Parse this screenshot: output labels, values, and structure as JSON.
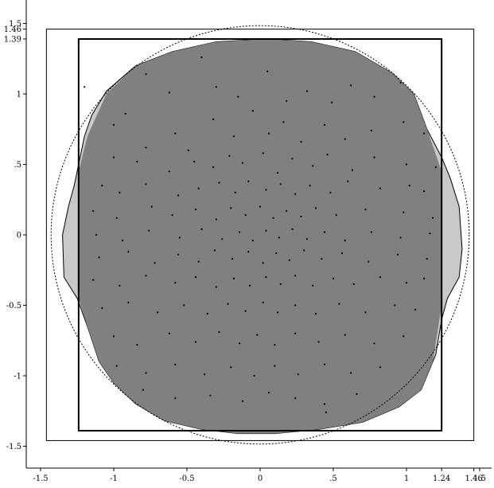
{
  "chart_data": {
    "type": "scatter",
    "title": "",
    "xlabel": "",
    "ylabel": "",
    "xlim": [
      -1.58,
      1.58
    ],
    "ylim": [
      -1.63,
      1.58
    ],
    "grid": false,
    "x_ticks": [
      {
        "value": -1.5,
        "label": "-1.5"
      },
      {
        "value": -1,
        "label": "-1"
      },
      {
        "value": -0.5,
        "label": "-0.5"
      },
      {
        "value": 0,
        "label": "0"
      },
      {
        "value": 0.5,
        "label": ".5"
      },
      {
        "value": 1,
        "label": "1"
      },
      {
        "value": 1.24,
        "label": "1.24"
      },
      {
        "value": 1.46,
        "label": "1.46"
      },
      {
        "value": 1.5,
        "label": "1.5"
      }
    ],
    "y_ticks": [
      {
        "value": 1.5,
        "label": "1.5"
      },
      {
        "value": 1.46,
        "label": "1.46"
      },
      {
        "value": 1.39,
        "label": "1.39"
      },
      {
        "value": 1,
        "label": "1"
      },
      {
        "value": 0.5,
        "label": ".5"
      },
      {
        "value": 0,
        "label": "0"
      },
      {
        "value": -0.5,
        "label": "-0.5"
      },
      {
        "value": -1,
        "label": "-1"
      },
      {
        "value": -1.5,
        "label": "-1.5"
      }
    ],
    "outer_rectangle": {
      "x": [
        -1.46,
        1.46
      ],
      "y": [
        -1.46,
        1.46
      ]
    },
    "inner_rectangle": {
      "x": [
        -1.24,
        1.24
      ],
      "y": [
        -1.39,
        1.39
      ]
    },
    "dotted_circle": {
      "center": [
        0,
        0
      ],
      "radius": 1.46
    },
    "outer_region_color": "#c8c8c8",
    "inner_region_color": "#808080",
    "outer_region_boundary": [
      [
        -1.35,
        0
      ],
      [
        -1.34,
        -0.3
      ],
      [
        -1.25,
        -0.45
      ],
      [
        -1.18,
        -0.65
      ],
      [
        -1.1,
        -0.9
      ],
      [
        -1.0,
        -1.05
      ],
      [
        -0.85,
        -1.2
      ],
      [
        -0.65,
        -1.32
      ],
      [
        -0.4,
        -1.38
      ],
      [
        -0.15,
        -1.41
      ],
      [
        0.1,
        -1.41
      ],
      [
        0.4,
        -1.38
      ],
      [
        0.7,
        -1.33
      ],
      [
        0.95,
        -1.22
      ],
      [
        1.1,
        -1.1
      ],
      [
        1.2,
        -0.85
      ],
      [
        1.24,
        -0.6
      ],
      [
        1.28,
        -0.45
      ],
      [
        1.36,
        -0.3
      ],
      [
        1.38,
        -0.1
      ],
      [
        1.36,
        0.2
      ],
      [
        1.3,
        0.4
      ],
      [
        1.24,
        0.55
      ],
      [
        1.14,
        0.75
      ],
      [
        1.05,
        1.0
      ],
      [
        0.9,
        1.15
      ],
      [
        0.65,
        1.3
      ],
      [
        0.35,
        1.37
      ],
      [
        0.05,
        1.39
      ],
      [
        -0.3,
        1.37
      ],
      [
        -0.6,
        1.3
      ],
      [
        -0.85,
        1.2
      ],
      [
        -1.05,
        1.02
      ],
      [
        -1.15,
        0.85
      ],
      [
        -1.2,
        0.7
      ],
      [
        -1.24,
        0.5
      ],
      [
        -1.27,
        0.35
      ],
      [
        -1.31,
        0.2
      ]
    ],
    "inner_region_boundary": [
      [
        -1.24,
        0.45
      ],
      [
        -1.18,
        0.7
      ],
      [
        -1.05,
        1.0
      ],
      [
        -0.85,
        1.2
      ],
      [
        -0.6,
        1.3
      ],
      [
        -0.3,
        1.37
      ],
      [
        0.05,
        1.39
      ],
      [
        0.35,
        1.37
      ],
      [
        0.65,
        1.3
      ],
      [
        0.9,
        1.15
      ],
      [
        1.05,
        1.0
      ],
      [
        1.14,
        0.75
      ],
      [
        1.24,
        0.45
      ],
      [
        1.24,
        -0.5
      ],
      [
        1.18,
        -0.9
      ],
      [
        1.1,
        -1.1
      ],
      [
        0.95,
        -1.22
      ],
      [
        0.7,
        -1.33
      ],
      [
        0.4,
        -1.38
      ],
      [
        0.1,
        -1.41
      ],
      [
        -0.15,
        -1.41
      ],
      [
        -0.4,
        -1.38
      ],
      [
        -0.65,
        -1.32
      ],
      [
        -0.85,
        -1.2
      ],
      [
        -1.0,
        -1.05
      ],
      [
        -1.1,
        -0.9
      ],
      [
        -1.18,
        -0.65
      ],
      [
        -1.24,
        -0.45
      ]
    ],
    "points": [
      [
        -1.2,
        1.05
      ],
      [
        -0.78,
        1.14
      ],
      [
        -0.62,
        1.01
      ],
      [
        -0.4,
        1.26
      ],
      [
        -0.3,
        1.05
      ],
      [
        -0.15,
        0.98
      ],
      [
        0.05,
        1.16
      ],
      [
        0.18,
        0.95
      ],
      [
        0.32,
        1.02
      ],
      [
        0.49,
        0.94
      ],
      [
        0.62,
        1.06
      ],
      [
        0.78,
        0.98
      ],
      [
        0.96,
        1.08
      ],
      [
        -1.0,
        0.78
      ],
      [
        -0.92,
        0.86
      ],
      [
        -0.78,
        0.62
      ],
      [
        -0.58,
        0.72
      ],
      [
        -0.49,
        0.6
      ],
      [
        -0.32,
        0.82
      ],
      [
        -0.18,
        0.7
      ],
      [
        -0.05,
        0.88
      ],
      [
        0.06,
        0.72
      ],
      [
        0.16,
        0.8
      ],
      [
        0.28,
        0.66
      ],
      [
        0.44,
        0.78
      ],
      [
        0.58,
        0.68
      ],
      [
        0.76,
        0.74
      ],
      [
        0.98,
        0.8
      ],
      [
        1.12,
        0.72
      ],
      [
        -1.0,
        0.55
      ],
      [
        -0.84,
        0.52
      ],
      [
        -0.62,
        0.45
      ],
      [
        -0.45,
        0.52
      ],
      [
        -0.32,
        0.48
      ],
      [
        -0.21,
        0.56
      ],
      [
        -0.12,
        0.51
      ],
      [
        0.02,
        0.58
      ],
      [
        0.12,
        0.44
      ],
      [
        0.22,
        0.54
      ],
      [
        0.36,
        0.49
      ],
      [
        0.46,
        0.57
      ],
      [
        0.63,
        0.46
      ],
      [
        0.78,
        0.55
      ],
      [
        1.0,
        0.5
      ],
      [
        1.2,
        0.48
      ],
      [
        -1.08,
        0.35
      ],
      [
        -0.96,
        0.3
      ],
      [
        -0.78,
        0.36
      ],
      [
        -0.56,
        0.28
      ],
      [
        -0.42,
        0.33
      ],
      [
        -0.28,
        0.37
      ],
      [
        -0.17,
        0.3
      ],
      [
        -0.08,
        0.38
      ],
      [
        0.04,
        0.32
      ],
      [
        0.14,
        0.36
      ],
      [
        0.24,
        0.29
      ],
      [
        0.34,
        0.35
      ],
      [
        0.48,
        0.3
      ],
      [
        0.6,
        0.38
      ],
      [
        0.82,
        0.33
      ],
      [
        1.02,
        0.35
      ],
      [
        1.12,
        0.31
      ],
      [
        -1.14,
        0.17
      ],
      [
        -0.98,
        0.12
      ],
      [
        -0.74,
        0.2
      ],
      [
        -0.6,
        0.14
      ],
      [
        -0.44,
        0.18
      ],
      [
        -0.3,
        0.11
      ],
      [
        -0.2,
        0.19
      ],
      [
        -0.1,
        0.14
      ],
      [
        0.0,
        0.2
      ],
      [
        0.09,
        0.12
      ],
      [
        0.18,
        0.17
      ],
      [
        0.28,
        0.13
      ],
      [
        0.38,
        0.19
      ],
      [
        0.52,
        0.14
      ],
      [
        0.72,
        0.18
      ],
      [
        0.98,
        0.16
      ],
      [
        1.18,
        0.12
      ],
      [
        -1.12,
        0.0
      ],
      [
        -0.94,
        -0.04
      ],
      [
        -0.76,
        0.03
      ],
      [
        -0.55,
        -0.02
      ],
      [
        -0.4,
        0.04
      ],
      [
        -0.26,
        -0.03
      ],
      [
        -0.14,
        0.02
      ],
      [
        -0.05,
        -0.04
      ],
      [
        0.04,
        0.03
      ],
      [
        0.13,
        -0.02
      ],
      [
        0.22,
        0.04
      ],
      [
        0.32,
        -0.03
      ],
      [
        0.44,
        0.02
      ],
      [
        0.58,
        -0.04
      ],
      [
        0.76,
        0.02
      ],
      [
        0.96,
        -0.02
      ],
      [
        1.16,
        0.01
      ],
      [
        -1.1,
        -0.16
      ],
      [
        -0.9,
        -0.12
      ],
      [
        -0.72,
        -0.2
      ],
      [
        -0.56,
        -0.14
      ],
      [
        -0.42,
        -0.19
      ],
      [
        -0.31,
        -0.11
      ],
      [
        -0.19,
        -0.17
      ],
      [
        -0.08,
        -0.12
      ],
      [
        0.02,
        -0.2
      ],
      [
        0.11,
        -0.13
      ],
      [
        0.2,
        -0.18
      ],
      [
        0.3,
        -0.11
      ],
      [
        0.42,
        -0.17
      ],
      [
        0.56,
        -0.13
      ],
      [
        0.74,
        -0.19
      ],
      [
        0.94,
        -0.14
      ],
      [
        1.14,
        -0.17
      ],
      [
        -1.14,
        -0.32
      ],
      [
        -0.96,
        -0.36
      ],
      [
        -0.78,
        -0.29
      ],
      [
        -0.58,
        -0.34
      ],
      [
        -0.44,
        -0.3
      ],
      [
        -0.3,
        -0.37
      ],
      [
        -0.18,
        -0.31
      ],
      [
        -0.07,
        -0.36
      ],
      [
        0.04,
        -0.3
      ],
      [
        0.14,
        -0.35
      ],
      [
        0.24,
        -0.29
      ],
      [
        0.36,
        -0.36
      ],
      [
        0.5,
        -0.31
      ],
      [
        0.64,
        -0.35
      ],
      [
        0.82,
        -0.3
      ],
      [
        1.0,
        -0.34
      ],
      [
        1.12,
        -0.31
      ],
      [
        -1.08,
        -0.52
      ],
      [
        -0.9,
        -0.48
      ],
      [
        -0.7,
        -0.55
      ],
      [
        -0.52,
        -0.5
      ],
      [
        -0.36,
        -0.56
      ],
      [
        -0.22,
        -0.49
      ],
      [
        -0.1,
        -0.54
      ],
      [
        0.02,
        -0.48
      ],
      [
        0.12,
        -0.55
      ],
      [
        0.24,
        -0.5
      ],
      [
        0.38,
        -0.56
      ],
      [
        0.54,
        -0.49
      ],
      [
        0.72,
        -0.55
      ],
      [
        0.92,
        -0.5
      ],
      [
        1.06,
        -0.53
      ],
      [
        -1.0,
        -0.72
      ],
      [
        -0.84,
        -0.78
      ],
      [
        -0.62,
        -0.7
      ],
      [
        -0.44,
        -0.76
      ],
      [
        -0.28,
        -0.69
      ],
      [
        -0.14,
        -0.77
      ],
      [
        -0.02,
        -0.71
      ],
      [
        0.1,
        -0.78
      ],
      [
        0.24,
        -0.7
      ],
      [
        0.4,
        -0.76
      ],
      [
        0.58,
        -0.71
      ],
      [
        0.78,
        -0.77
      ],
      [
        0.98,
        -0.72
      ],
      [
        -0.98,
        -0.93
      ],
      [
        -0.78,
        -0.98
      ],
      [
        -0.58,
        -0.92
      ],
      [
        -0.38,
        -0.99
      ],
      [
        -0.2,
        -0.94
      ],
      [
        -0.04,
        -1.0
      ],
      [
        0.1,
        -0.93
      ],
      [
        0.26,
        -0.99
      ],
      [
        0.44,
        -0.92
      ],
      [
        0.62,
        -0.98
      ],
      [
        0.82,
        -0.94
      ],
      [
        -0.8,
        -1.1
      ],
      [
        -0.58,
        -1.16
      ],
      [
        -0.34,
        -1.14
      ],
      [
        -0.12,
        -1.18
      ],
      [
        0.06,
        -1.12
      ],
      [
        0.24,
        -1.16
      ],
      [
        0.44,
        -1.2
      ],
      [
        0.66,
        -1.13
      ],
      [
        0.45,
        -1.26
      ]
    ],
    "point_color": "#000000"
  }
}
